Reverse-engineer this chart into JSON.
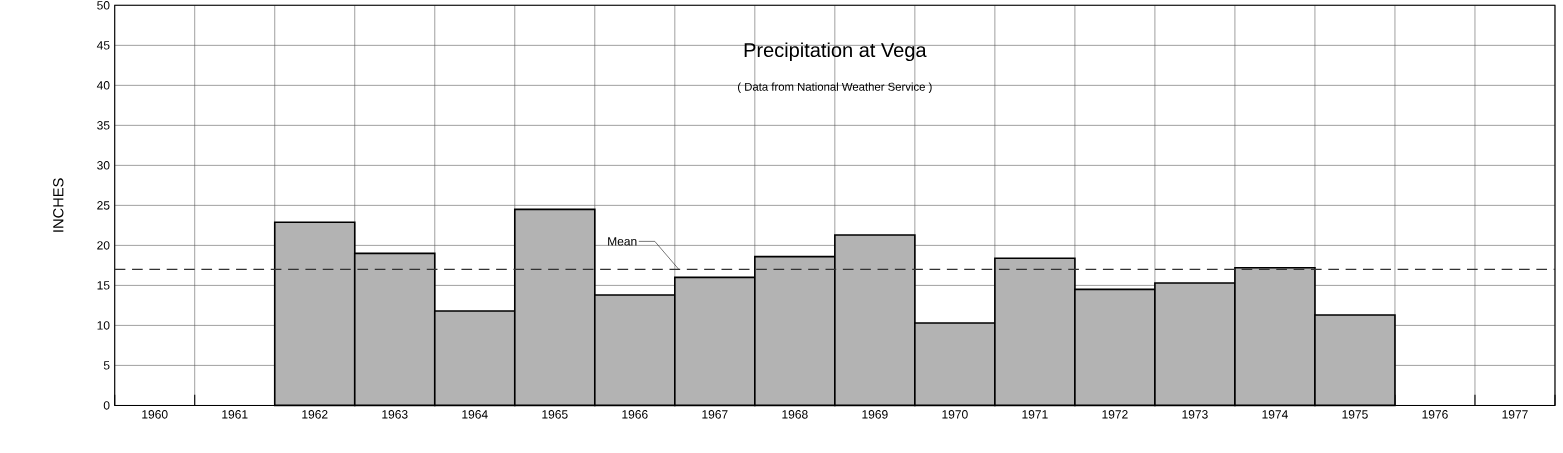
{
  "chart_data": {
    "type": "bar",
    "title": "Precipitation at Vega",
    "subtitle": "( Data from National Weather Service )",
    "ylabel": "INCHES",
    "categories": [
      "1960",
      "1961",
      "1962",
      "1963",
      "1964",
      "1965",
      "1966",
      "1967",
      "1968",
      "1969",
      "1970",
      "1971",
      "1972",
      "1973",
      "1974",
      "1975",
      "1976",
      "1977"
    ],
    "values": [
      null,
      null,
      22.9,
      19.0,
      11.8,
      24.5,
      13.8,
      16.0,
      18.6,
      21.3,
      10.3,
      18.4,
      14.5,
      15.3,
      17.2,
      11.3,
      null,
      null
    ],
    "color": "#b3b3b3",
    "ylim": [
      0,
      50
    ],
    "yticks": [
      0,
      5,
      10,
      15,
      20,
      25,
      30,
      35,
      40,
      45,
      50
    ],
    "grid": true,
    "ref_lines": [
      {
        "axis": "y",
        "value": 17,
        "label": "Mean",
        "line_style": "dashed",
        "color": "#333333"
      }
    ]
  }
}
